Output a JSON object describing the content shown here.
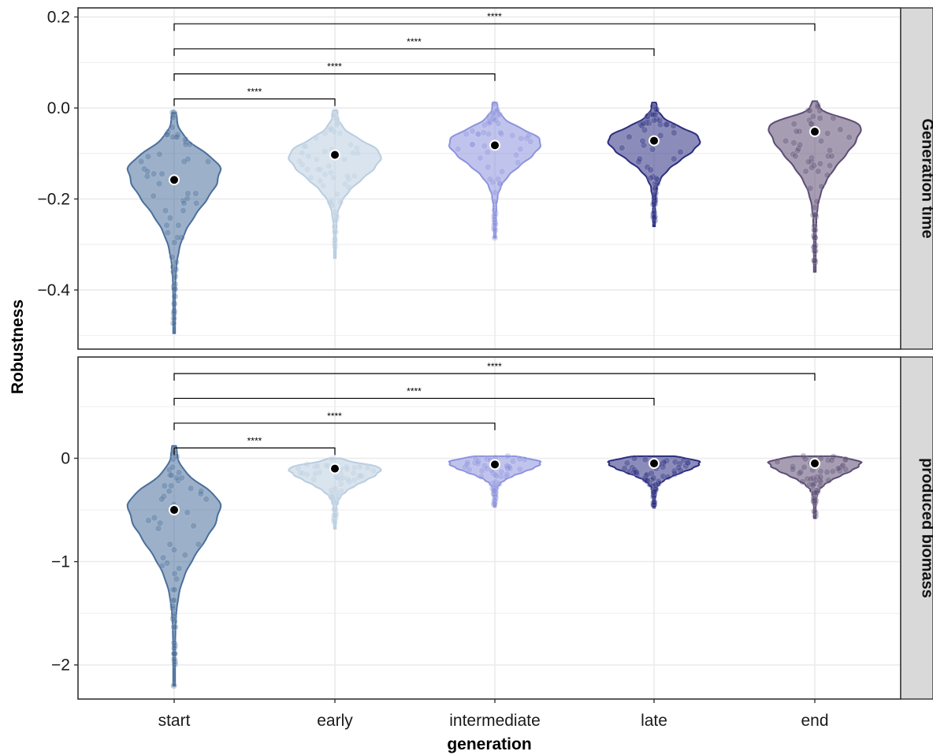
{
  "chart_data": {
    "type": "violin",
    "xlabel": "generation",
    "ylabel": "Robustness",
    "categories": [
      "start",
      "early",
      "intermediate",
      "late",
      "end"
    ],
    "colors": {
      "start": "#4a6f9c",
      "early": "#b9cde0",
      "intermediate": "#8d93de",
      "late": "#2b2d80",
      "end": "#5c4d74"
    },
    "grid": true,
    "panels": [
      {
        "strip": "Generation time",
        "ylim": [
          -0.53,
          0.22
        ],
        "yticks": [
          0.2,
          0.0,
          -0.2,
          -0.4
        ],
        "ytick_labels": [
          "0.2",
          "0.0",
          "−0.2",
          "−0.4"
        ],
        "means": [
          -0.158,
          -0.103,
          -0.082,
          -0.072,
          -0.052
        ],
        "ranges": [
          [
            -0.495,
            -0.01
          ],
          [
            -0.33,
            -0.005
          ],
          [
            -0.285,
            0.012
          ],
          [
            -0.26,
            0.012
          ],
          [
            -0.36,
            0.015
          ]
        ],
        "modes": [
          -0.135,
          -0.105,
          -0.075,
          -0.07,
          -0.04
        ],
        "comparisons": [
          {
            "groups": [
              "start",
              "early"
            ],
            "label": "****",
            "y": 0.02
          },
          {
            "groups": [
              "start",
              "intermediate"
            ],
            "label": "****",
            "y": 0.075
          },
          {
            "groups": [
              "start",
              "late"
            ],
            "label": "****",
            "y": 0.13
          },
          {
            "groups": [
              "start",
              "end"
            ],
            "label": "****",
            "y": 0.185
          }
        ]
      },
      {
        "strip": "produced biomass",
        "ylim": [
          -2.33,
          0.98
        ],
        "yticks": [
          0,
          -1,
          -2
        ],
        "ytick_labels": [
          "0",
          "−1",
          "−2"
        ],
        "means": [
          -0.5,
          -0.1,
          -0.06,
          -0.05,
          -0.05
        ],
        "ranges": [
          [
            -2.2,
            0.12
          ],
          [
            -0.68,
            0.0
          ],
          [
            -0.47,
            0.02
          ],
          [
            -0.48,
            0.02
          ],
          [
            -0.58,
            0.02
          ]
        ],
        "modes": [
          -0.45,
          -0.1,
          -0.04,
          -0.04,
          -0.04
        ],
        "comparisons": [
          {
            "groups": [
              "start",
              "early"
            ],
            "label": "****",
            "y": 0.1
          },
          {
            "groups": [
              "start",
              "intermediate"
            ],
            "label": "****",
            "y": 0.34
          },
          {
            "groups": [
              "start",
              "late"
            ],
            "label": "****",
            "y": 0.58
          },
          {
            "groups": [
              "start",
              "end"
            ],
            "label": "****",
            "y": 0.82
          }
        ]
      }
    ]
  }
}
